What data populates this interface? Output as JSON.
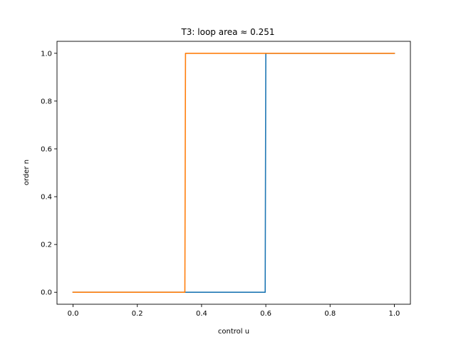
{
  "chart_data": {
    "type": "line",
    "title": "T3: loop area ≈ 0.251",
    "xlabel": "control u",
    "ylabel": "order n",
    "xlim": [
      -0.05,
      1.05
    ],
    "ylim": [
      -0.05,
      1.05
    ],
    "xticks": [
      0.0,
      0.2,
      0.4,
      0.6,
      0.8,
      1.0
    ],
    "yticks": [
      0.0,
      0.2,
      0.4,
      0.6,
      0.8,
      1.0
    ],
    "xtick_labels": [
      "0.0",
      "0.2",
      "0.4",
      "0.6",
      "0.8",
      "1.0"
    ],
    "ytick_labels": [
      "0.0",
      "0.2",
      "0.4",
      "0.6",
      "0.8",
      "1.0"
    ],
    "grid": false,
    "series": [
      {
        "color": "#1f77b4",
        "x": [
          0.0,
          0.598,
          0.6,
          1.0
        ],
        "y": [
          0.0,
          0.0,
          1.0,
          1.0
        ]
      },
      {
        "color": "#ff7f0e",
        "x": [
          0.0,
          0.348,
          0.35,
          1.0
        ],
        "y": [
          0.0,
          0.0,
          1.0,
          1.0
        ]
      }
    ]
  }
}
